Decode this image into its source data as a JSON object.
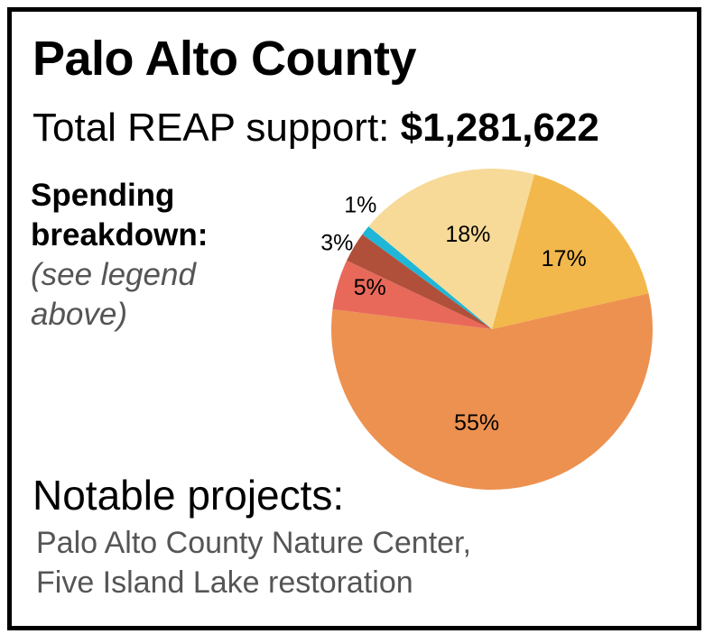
{
  "county": "Palo Alto County",
  "total_label": "Total REAP support:",
  "total_amount": "$1,281,622",
  "spending": {
    "heading_line1": "Spending",
    "heading_line2": "breakdown:",
    "note_line1": "(see legend",
    "note_line2": "above)"
  },
  "notable": {
    "heading": "Notable projects:",
    "line1": "Palo Alto County Nature Center,",
    "line2": "Five Island Lake restoration"
  },
  "chart_data": {
    "type": "pie",
    "start_angle_deg": 15.3,
    "direction": "clockwise",
    "slices": [
      {
        "label": "17%",
        "value": 17,
        "color": "#f2b84b"
      },
      {
        "label": "55%",
        "value": 55,
        "color": "#ed9150"
      },
      {
        "label": "5%",
        "value": 5,
        "color": "#e8695a"
      },
      {
        "label": "3%",
        "value": 3,
        "color": "#b0503a"
      },
      {
        "label": "1%",
        "value": 1,
        "color": "#1eb7d7"
      },
      {
        "label": "18%",
        "value": 18,
        "color": "#f7da98"
      }
    ]
  }
}
